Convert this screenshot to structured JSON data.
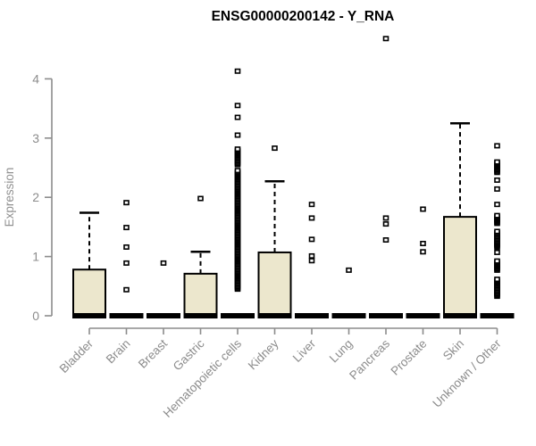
{
  "chart_data": {
    "type": "boxplot",
    "title": "ENSG00000200142 - Y_RNA",
    "ylabel": "Expression",
    "xlabel": "",
    "ylim": [
      0,
      4
    ],
    "yticks": [
      0,
      1,
      2,
      3,
      4
    ],
    "grid": false,
    "legend": "none",
    "colors": {
      "box_fill": "#ece7cd",
      "box_stroke": "#000000",
      "median": "#000000",
      "whisker": "#000000",
      "axis": "#8c8c8c",
      "tick_label": "#8c8c8c",
      "title": "#000000"
    },
    "categories": [
      {
        "label": "Bladder",
        "q1": 0,
        "median": 0,
        "q3": 0.78,
        "whisker_low": 0,
        "whisker_high": 1.74,
        "outliers": [],
        "dense_outlier_ranges": []
      },
      {
        "label": "Brain",
        "q1": 0,
        "median": 0,
        "q3": 0,
        "whisker_low": 0,
        "whisker_high": 0,
        "outliers": [
          1.91,
          1.49,
          1.16,
          0.89,
          0.44
        ],
        "dense_outlier_ranges": []
      },
      {
        "label": "Breast",
        "q1": 0,
        "median": 0,
        "q3": 0,
        "whisker_low": 0,
        "whisker_high": 0,
        "outliers": [
          0.89
        ],
        "dense_outlier_ranges": []
      },
      {
        "label": "Gastric",
        "q1": 0,
        "median": 0,
        "q3": 0.71,
        "whisker_low": 0,
        "whisker_high": 1.08,
        "outliers": [
          1.98
        ],
        "dense_outlier_ranges": []
      },
      {
        "label": "Hematopoietic cells",
        "q1": 0,
        "median": 0,
        "q3": 0,
        "whisker_low": 0,
        "whisker_high": 0,
        "outliers": [
          4.13,
          3.55,
          3.35,
          3.05
        ],
        "dense_outlier_ranges": [
          [
            2.55,
            2.82
          ],
          [
            0.45,
            2.47
          ]
        ]
      },
      {
        "label": "Kidney",
        "q1": 0,
        "median": 0,
        "q3": 1.07,
        "whisker_low": 0,
        "whisker_high": 2.27,
        "outliers": [
          2.83
        ],
        "dense_outlier_ranges": []
      },
      {
        "label": "Liver",
        "q1": 0,
        "median": 0,
        "q3": 0,
        "whisker_low": 0,
        "whisker_high": 0,
        "outliers": [
          1.88,
          1.65,
          1.29,
          1.01,
          0.93
        ],
        "dense_outlier_ranges": []
      },
      {
        "label": "Lung",
        "q1": 0,
        "median": 0,
        "q3": 0,
        "whisker_low": 0,
        "whisker_high": 0,
        "outliers": [
          0.77
        ],
        "dense_outlier_ranges": []
      },
      {
        "label": "Pancreas",
        "q1": 0,
        "median": 0,
        "q3": 0,
        "whisker_low": 0,
        "whisker_high": 0,
        "outliers": [
          4.68,
          1.65,
          1.55,
          1.28
        ],
        "dense_outlier_ranges": []
      },
      {
        "label": "Prostate",
        "q1": 0,
        "median": 0,
        "q3": 0,
        "whisker_low": 0,
        "whisker_high": 0,
        "outliers": [
          1.8,
          1.22,
          1.08
        ],
        "dense_outlier_ranges": []
      },
      {
        "label": "Skin",
        "q1": 0,
        "median": 0,
        "q3": 1.67,
        "whisker_low": 0,
        "whisker_high": 3.25,
        "outliers": [],
        "dense_outlier_ranges": []
      },
      {
        "label": "Unknown / Other",
        "q1": 0,
        "median": 0,
        "q3": 0,
        "whisker_low": 0,
        "whisker_high": 0,
        "outliers": [
          2.87,
          2.29,
          2.14,
          1.88,
          1.07
        ],
        "dense_outlier_ranges": [
          [
            2.42,
            2.6
          ],
          [
            1.56,
            1.71
          ],
          [
            1.16,
            1.44
          ],
          [
            0.77,
            0.93
          ],
          [
            0.33,
            0.63
          ]
        ]
      }
    ]
  }
}
